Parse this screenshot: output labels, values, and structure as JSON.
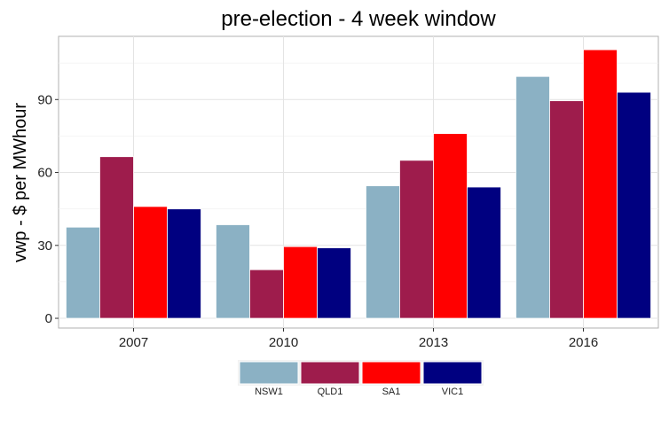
{
  "chart_data": {
    "type": "bar",
    "title": "pre-election - 4 week window",
    "xlabel": "",
    "ylabel": "vwp - $ per MWhour",
    "categories": [
      "2007",
      "2010",
      "2013",
      "2016"
    ],
    "series": [
      {
        "name": "NSW1",
        "color": "#8bb1c4",
        "values": [
          37.5,
          38.5,
          54.5,
          99.5
        ]
      },
      {
        "name": "QLD1",
        "color": "#9e1c4c",
        "values": [
          66.5,
          20,
          65,
          89.5
        ]
      },
      {
        "name": "SA1",
        "color": "#ff0000",
        "values": [
          46,
          29.5,
          76,
          110.5
        ]
      },
      {
        "name": "VIC1",
        "color": "#000080",
        "values": [
          45,
          29,
          54,
          93
        ]
      }
    ],
    "ylim": [
      -4,
      116
    ],
    "yticks": [
      0,
      30,
      60,
      90
    ],
    "grid": true,
    "legend_position": "bottom"
  }
}
